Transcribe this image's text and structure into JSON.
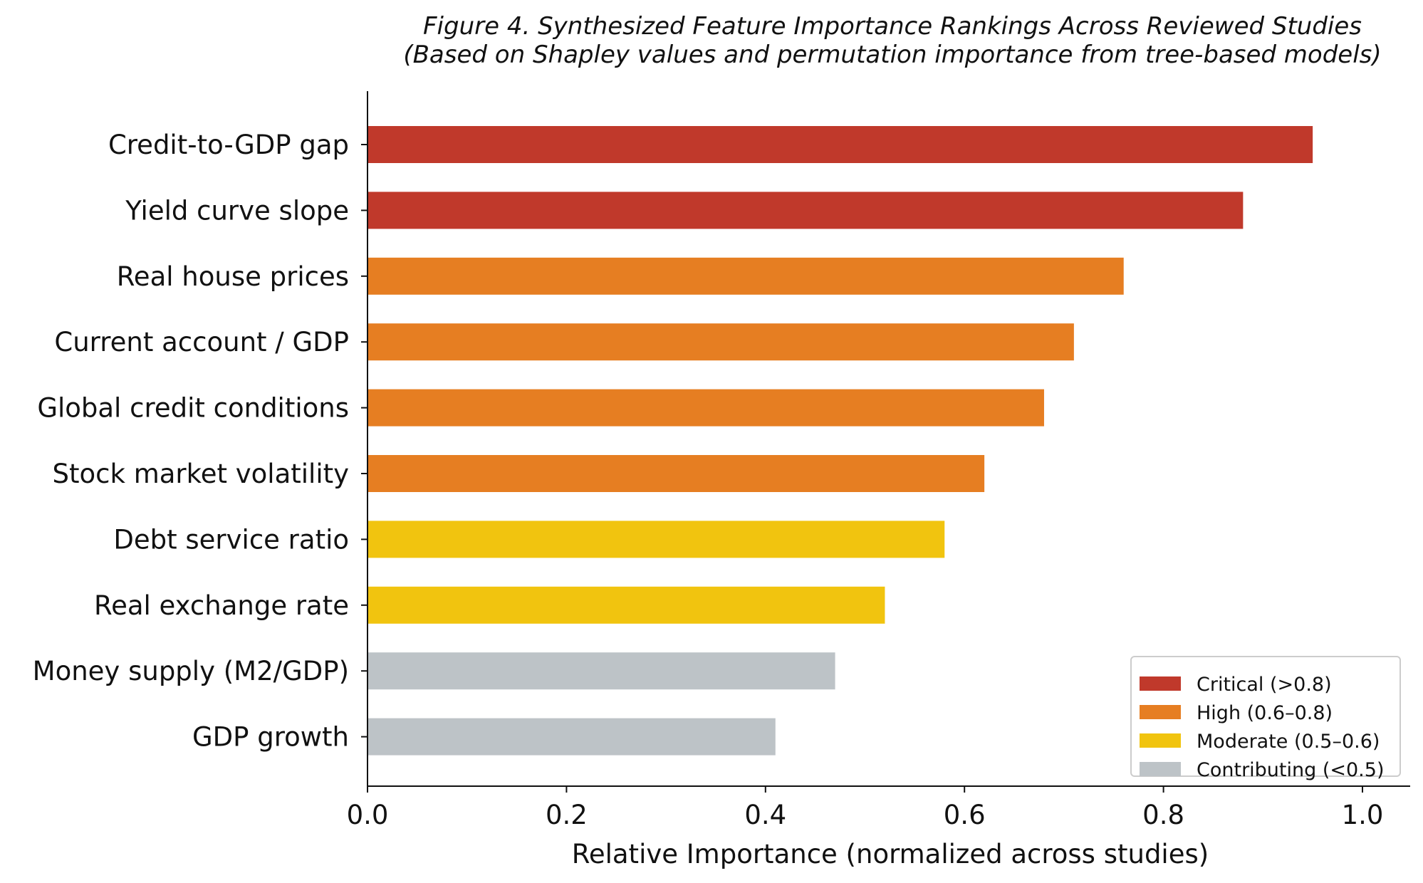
{
  "chart_data": {
    "type": "bar",
    "orientation": "horizontal",
    "title": "Figure 4. Synthesized Feature Importance Rankings Across Reviewed Studies",
    "subtitle": "(Based on Shapley values and permutation importance from tree-based models)",
    "xlabel": "Relative Importance (normalized across studies)",
    "ylabel": "",
    "xlim": [
      0,
      1.05
    ],
    "x_ticks": [
      "0.0",
      "0.2",
      "0.4",
      "0.6",
      "0.8",
      "1.0"
    ],
    "grid": false,
    "legend_position": "bottom-right",
    "categories": [
      "Credit-to-GDP gap",
      "Yield curve slope",
      "Real house prices",
      "Current account / GDP",
      "Global credit conditions",
      "Stock market volatility",
      "Debt service ratio",
      "Real exchange rate",
      "Money supply (M2/GDP)",
      "GDP growth"
    ],
    "values": [
      0.95,
      0.88,
      0.76,
      0.71,
      0.68,
      0.62,
      0.58,
      0.52,
      0.47,
      0.41
    ],
    "value_group": [
      "critical",
      "critical",
      "high",
      "high",
      "high",
      "high",
      "moderate",
      "moderate",
      "contributing",
      "contributing"
    ],
    "legend": [
      {
        "key": "critical",
        "label": "Critical (>0.8)",
        "color": "#c0392b"
      },
      {
        "key": "high",
        "label": "High (0.6–0.8)",
        "color": "#e67e22"
      },
      {
        "key": "moderate",
        "label": "Moderate (0.5–0.6)",
        "color": "#f1c40f"
      },
      {
        "key": "contributing",
        "label": "Contributing (<0.5)",
        "color": "#bdc3c7"
      }
    ]
  }
}
